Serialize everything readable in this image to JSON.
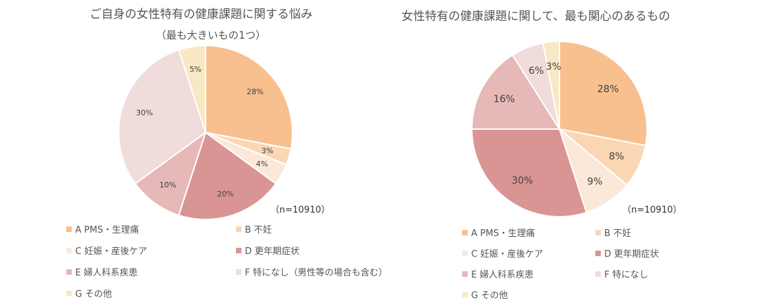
{
  "charts": [
    {
      "title": "ご自身の女性特有の健康課題に関する悩み",
      "subtitle": "（最も大きいもの1つ）",
      "n_label": "（n=10910）"
    },
    {
      "title": "女性特有の健康課題に関して、最も関心のあるもの",
      "n_label": "（n=10910）"
    }
  ],
  "chart_data": [
    {
      "type": "pie",
      "title": "ご自身の女性特有の健康課題に関する悩み",
      "subtitle": "（最も大きいもの1つ）",
      "slices": [
        {
          "label": "A PMS・生理痛",
          "value": 28,
          "text": "28%",
          "color": "#f8c08f"
        },
        {
          "label": "B 不妊",
          "value": 3,
          "text": "3%",
          "color": "#fbd6b3"
        },
        {
          "label": "C 妊娠・産後ケア",
          "value": 4,
          "text": "4%",
          "color": "#fce8d8"
        },
        {
          "label": "D 更年期症状",
          "value": 20,
          "text": "20%",
          "color": "#d99594"
        },
        {
          "label": "E 婦人科系疾患",
          "value": 10,
          "text": "10%",
          "color": "#e6b8b7"
        },
        {
          "label": "F 特になし（男性等の場合も含む）",
          "value": 30,
          "text": "30%",
          "color": "#f0dcdb"
        },
        {
          "label": "G その他",
          "value": 5,
          "text": "5%",
          "color": "#f9e8c4"
        }
      ]
    },
    {
      "type": "pie",
      "title": "女性特有の健康課題に関して、最も関心のあるもの",
      "slices": [
        {
          "label": "A PMS・生理痛",
          "value": 28,
          "text": "28%",
          "color": "#f8c08f"
        },
        {
          "label": "B 不妊",
          "value": 8,
          "text": "8%",
          "color": "#fbd6b3"
        },
        {
          "label": "C 妊娠・産後ケア",
          "value": 9,
          "text": "9%",
          "color": "#fce8d8"
        },
        {
          "label": "D 更年期症状",
          "value": 30,
          "text": "30%",
          "color": "#d99594"
        },
        {
          "label": "E 婦人科系疾患",
          "value": 16,
          "text": "16%",
          "color": "#e6b8b7"
        },
        {
          "label": "F 特になし",
          "value": 6,
          "text": "6%",
          "color": "#f0dcdb"
        },
        {
          "label": "G その他",
          "value": 3,
          "text": "3%",
          "color": "#f9e8c4"
        }
      ]
    }
  ]
}
